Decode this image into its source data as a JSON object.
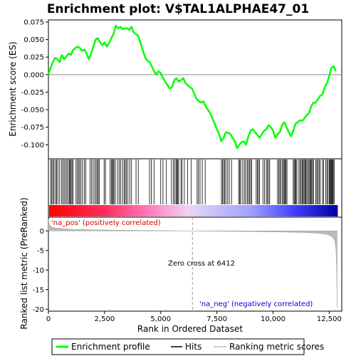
{
  "chart_data": [
    {
      "type": "line",
      "title": "Enrichment plot: V$TAL1ALPHAE47_01",
      "ylabel": "Enrichment score (ES)",
      "xlim": [
        0,
        13000
      ],
      "ylim": [
        -0.12,
        0.078
      ],
      "yticks": [
        "0.075",
        "0.050",
        "0.025",
        "0.000",
        "-0.025",
        "-0.050",
        "-0.075",
        "-0.100"
      ],
      "ytick_values": [
        0.075,
        0.05,
        0.025,
        0.0,
        -0.025,
        -0.05,
        -0.075,
        -0.1
      ],
      "series": [
        {
          "name": "Enrichment profile",
          "color": "#00ff00",
          "x": [
            0,
            100,
            200,
            300,
            400,
            500,
            600,
            700,
            800,
            900,
            1000,
            1100,
            1200,
            1300,
            1400,
            1500,
            1600,
            1700,
            1800,
            1900,
            2000,
            2100,
            2200,
            2300,
            2400,
            2500,
            2600,
            2700,
            2800,
            2900,
            3000,
            3100,
            3200,
            3300,
            3400,
            3500,
            3600,
            3700,
            3800,
            3900,
            4000,
            4100,
            4200,
            4300,
            4400,
            4500,
            4600,
            4700,
            4800,
            4900,
            5000,
            5100,
            5200,
            5300,
            5400,
            5500,
            5600,
            5700,
            5800,
            5900,
            6000,
            6100,
            6200,
            6300,
            6400,
            6500,
            6600,
            6700,
            6800,
            6900,
            7000,
            7100,
            7200,
            7300,
            7400,
            7500,
            7600,
            7700,
            7800,
            7900,
            8000,
            8100,
            8200,
            8300,
            8400,
            8500,
            8600,
            8700,
            8800,
            8900,
            9000,
            9100,
            9200,
            9300,
            9400,
            9500,
            9600,
            9700,
            9800,
            9900,
            10000,
            10100,
            10200,
            10300,
            10400,
            10500,
            10600,
            10700,
            10800,
            10900,
            11000,
            11100,
            11200,
            11300,
            11400,
            11500,
            11600,
            11700,
            11800,
            11900,
            12000,
            12100,
            12200,
            12300,
            12400,
            12500,
            12600,
            12700,
            12800
          ],
          "y": [
            0.0,
            0.01,
            0.018,
            0.024,
            0.022,
            0.018,
            0.028,
            0.022,
            0.026,
            0.03,
            0.028,
            0.035,
            0.038,
            0.04,
            0.038,
            0.034,
            0.036,
            0.03,
            0.022,
            0.03,
            0.04,
            0.05,
            0.052,
            0.046,
            0.042,
            0.046,
            0.04,
            0.045,
            0.052,
            0.058,
            0.07,
            0.066,
            0.068,
            0.065,
            0.066,
            0.066,
            0.064,
            0.068,
            0.06,
            0.058,
            0.055,
            0.045,
            0.035,
            0.025,
            0.02,
            0.018,
            0.012,
            0.005,
            0.0,
            0.005,
            0.002,
            -0.005,
            -0.01,
            -0.015,
            -0.02,
            -0.018,
            -0.008,
            -0.005,
            -0.01,
            -0.008,
            -0.005,
            -0.012,
            -0.015,
            -0.018,
            -0.02,
            -0.028,
            -0.035,
            -0.038,
            -0.04,
            -0.038,
            -0.045,
            -0.05,
            -0.055,
            -0.062,
            -0.07,
            -0.078,
            -0.085,
            -0.095,
            -0.09,
            -0.082,
            -0.083,
            -0.085,
            -0.09,
            -0.095,
            -0.105,
            -0.1,
            -0.096,
            -0.095,
            -0.1,
            -0.088,
            -0.08,
            -0.078,
            -0.082,
            -0.086,
            -0.09,
            -0.085,
            -0.08,
            -0.078,
            -0.072,
            -0.075,
            -0.08,
            -0.09,
            -0.085,
            -0.082,
            -0.072,
            -0.068,
            -0.075,
            -0.082,
            -0.088,
            -0.08,
            -0.07,
            -0.068,
            -0.065,
            -0.066,
            -0.062,
            -0.058,
            -0.055,
            -0.045,
            -0.04,
            -0.04,
            -0.035,
            -0.03,
            -0.028,
            -0.018,
            -0.012,
            -0.002,
            0.01,
            0.012,
            0.005
          ]
        }
      ]
    },
    {
      "type": "bar",
      "ylabel": "Ranked list metric (PreRanked)",
      "xlabel": "Rank in Ordered Dataset",
      "xlim": [
        0,
        13000
      ],
      "ylim": [
        -20.5,
        3.5
      ],
      "xticks": [
        "0",
        "2,500",
        "5,000",
        "7,500",
        "10,000",
        "12,500"
      ],
      "xtick_values": [
        0,
        2500,
        5000,
        7500,
        10000,
        12500
      ],
      "yticks": [
        "0",
        "-5",
        "-10",
        "-15",
        "-20"
      ],
      "ytick_values": [
        0,
        -5,
        -10,
        -15,
        -20
      ],
      "zero_cross": 6412,
      "zero_cross_label": "Zero cross at 6412",
      "pos_label": "'na_pos' (positively correlated)",
      "neg_label": "'na_neg' (negatively correlated)",
      "pos_color": "#cc0000",
      "neg_color": "#0000cc",
      "metric_x": [
        0,
        30,
        80,
        150,
        300,
        600,
        1200,
        2500,
        4000,
        5500,
        6412,
        7500,
        9000,
        10500,
        11500,
        12000,
        12300,
        12500,
        12650,
        12750,
        12800,
        12830,
        12850
      ],
      "metric_y": [
        3.0,
        1.8,
        1.3,
        1.0,
        0.75,
        0.55,
        0.38,
        0.22,
        0.12,
        0.05,
        0.0,
        -0.08,
        -0.18,
        -0.3,
        -0.45,
        -0.6,
        -0.8,
        -1.1,
        -1.6,
        -2.6,
        -4.5,
        -10,
        -19.5
      ],
      "hits": [
        100,
        150,
        200,
        250,
        320,
        360,
        420,
        500,
        580,
        640,
        700,
        760,
        820,
        880,
        930,
        970,
        1010,
        1050,
        1100,
        1230,
        1280,
        1340,
        1390,
        1450,
        1520,
        1600,
        1660,
        1850,
        1920,
        1990,
        2060,
        2120,
        2170,
        2220,
        2260,
        2480,
        2540,
        2750,
        2800,
        2850,
        2880,
        2920,
        2980,
        3080,
        3150,
        3220,
        3300,
        3370,
        3420,
        3470,
        3540,
        3620,
        3700,
        3900,
        4000,
        4500,
        4580,
        4700,
        5000,
        5100,
        5250,
        5480,
        5560,
        5620,
        5680,
        5720,
        5760,
        5800,
        5900,
        5950,
        6050,
        6200,
        6350,
        6620,
        6680,
        6750,
        6850,
        6980,
        7700,
        7750,
        7800,
        7850,
        7900,
        7980,
        8050,
        8150,
        8480,
        8520,
        8560,
        8650,
        8720,
        8780,
        8850,
        8900,
        8950,
        9000,
        9050,
        9250,
        9300,
        9350,
        9400,
        9550,
        9620,
        9700,
        9750,
        9800,
        9850,
        10200,
        10250,
        10300,
        10350,
        10420,
        10460,
        10500,
        10540,
        10580,
        10620,
        10900,
        10940,
        10980,
        11020,
        11060,
        11150,
        11200,
        11250,
        11300,
        11340,
        11380,
        11420,
        11460,
        11500,
        11550,
        11600,
        11640,
        11680,
        11720,
        11760,
        11800,
        11900,
        11950,
        12000,
        12050,
        12100,
        12200,
        12250,
        12350,
        12400,
        12450,
        12500,
        12530,
        12560,
        12590,
        12620,
        12650,
        12680,
        12720
      ]
    }
  ],
  "legend": {
    "enrichment_label": "Enrichment profile",
    "hits_label": "Hits",
    "ranking_label": "Ranking metric scores",
    "enrichment_color": "#00ff00",
    "hits_color": "#000000",
    "ranking_color": "#bbbbbb"
  }
}
